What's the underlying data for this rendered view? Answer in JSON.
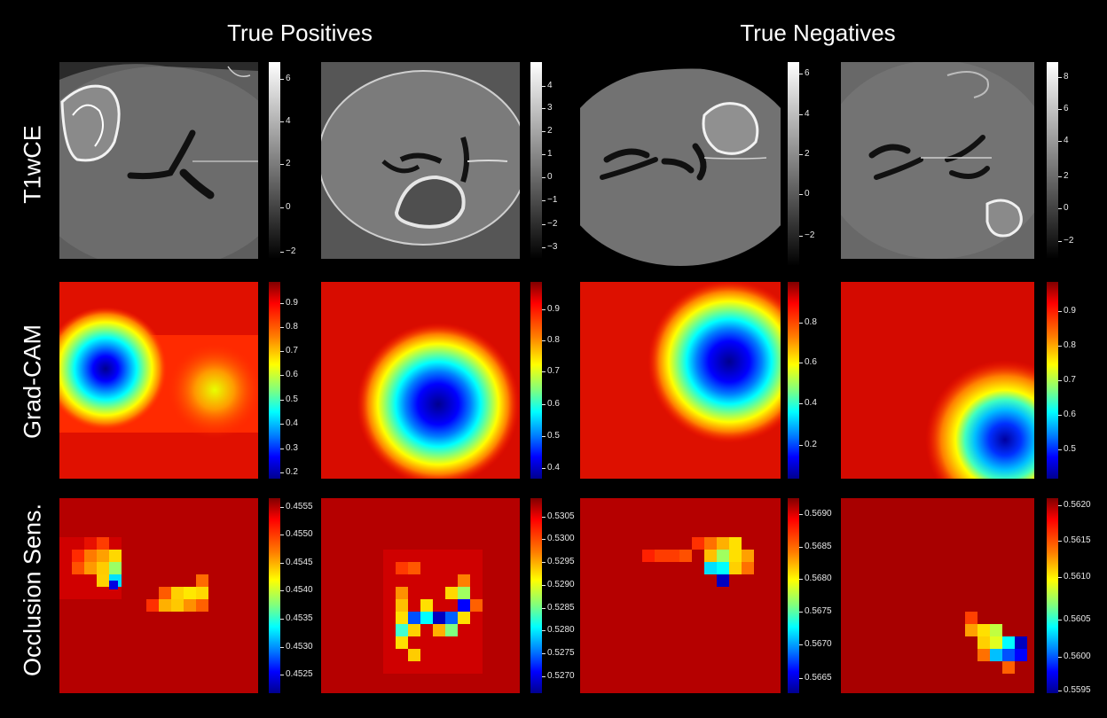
{
  "headers": {
    "left": "True Positives",
    "right": "True Negatives"
  },
  "row_labels": [
    "T1wCE",
    "Grad-CAM",
    "Occlusion Sens."
  ],
  "colorbars": [
    [
      [
        "6",
        "4",
        "2",
        "0",
        "−2"
      ],
      [
        "4",
        "3",
        "2",
        "1",
        "0",
        "−1",
        "−2",
        "−3"
      ],
      [
        "6",
        "4",
        "2",
        "0",
        "−2"
      ],
      [
        "8",
        "6",
        "4",
        "2",
        "0",
        "−2"
      ]
    ],
    [
      [
        "0.9",
        "0.8",
        "0.7",
        "0.6",
        "0.5",
        "0.4",
        "0.3",
        "0.2"
      ],
      [
        "0.9",
        "0.8",
        "0.7",
        "0.6",
        "0.5",
        "0.4"
      ],
      [
        "0.8",
        "0.6",
        "0.4",
        "0.2"
      ],
      [
        "0.9",
        "0.8",
        "0.7",
        "0.6",
        "0.5"
      ]
    ],
    [
      [
        "0.4555",
        "0.4550",
        "0.4545",
        "0.4540",
        "0.4535",
        "0.4530",
        "0.4525"
      ],
      [
        "0.5305",
        "0.5300",
        "0.5295",
        "0.5290",
        "0.5285",
        "0.5280",
        "0.5275",
        "0.5270"
      ],
      [
        "0.5690",
        "0.5685",
        "0.5680",
        "0.5675",
        "0.5670",
        "0.5665"
      ],
      [
        "0.5620",
        "0.5615",
        "0.5610",
        "0.5605",
        "0.5600",
        "0.5595"
      ]
    ]
  ],
  "colormaps": {
    "image_row": "gray",
    "heatmap_rows": "jet"
  }
}
